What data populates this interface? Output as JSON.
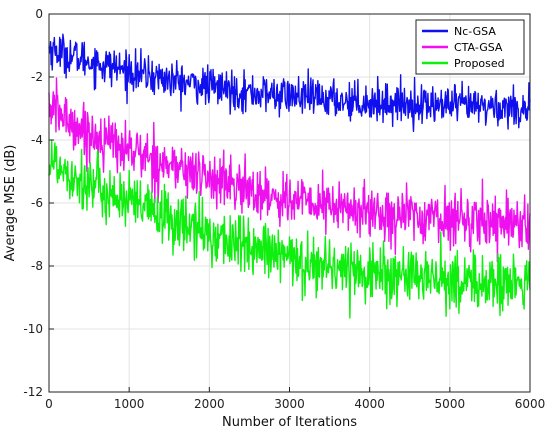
{
  "chart_data": {
    "type": "line",
    "title": "",
    "xlabel": "Number of Iterations",
    "ylabel": "Average MSE (dB)",
    "xlim": [
      0,
      6000
    ],
    "ylim": [
      -12,
      0
    ],
    "xticks": [
      0,
      1000,
      2000,
      3000,
      4000,
      5000,
      6000
    ],
    "yticks": [
      0,
      -2,
      -4,
      -6,
      -8,
      -10,
      -12
    ],
    "grid": true,
    "legend_position": "top-right",
    "series": [
      {
        "name": "Nc-GSA",
        "color": "#1010ee",
        "x": [
          0,
          250,
          500,
          1000,
          1500,
          2000,
          2500,
          3000,
          3500,
          4000,
          4500,
          5000,
          5500,
          6000
        ],
        "y": [
          -1.1,
          -1.3,
          -1.5,
          -1.8,
          -2.1,
          -2.3,
          -2.5,
          -2.6,
          -2.7,
          -2.8,
          -2.85,
          -2.9,
          -2.95,
          -3.0
        ],
        "noise_amplitude": 0.55
      },
      {
        "name": "CTA-GSA",
        "color": "#ee10ee",
        "x": [
          0,
          250,
          500,
          1000,
          1500,
          2000,
          2500,
          3000,
          3500,
          4000,
          4500,
          5000,
          5500,
          6000
        ],
        "y": [
          -2.9,
          -3.4,
          -3.8,
          -4.3,
          -4.8,
          -5.2,
          -5.6,
          -5.9,
          -6.1,
          -6.3,
          -6.4,
          -6.5,
          -6.55,
          -6.6
        ],
        "noise_amplitude": 0.75
      },
      {
        "name": "Proposed",
        "color": "#10ee10",
        "x": [
          0,
          250,
          500,
          1000,
          1500,
          2000,
          2500,
          3000,
          3500,
          4000,
          4500,
          5000,
          5500,
          6000
        ],
        "y": [
          -4.6,
          -5.0,
          -5.4,
          -6.0,
          -6.5,
          -7.0,
          -7.4,
          -7.8,
          -8.0,
          -8.2,
          -8.35,
          -8.45,
          -8.55,
          -8.6
        ],
        "noise_amplitude": 0.85
      }
    ]
  }
}
